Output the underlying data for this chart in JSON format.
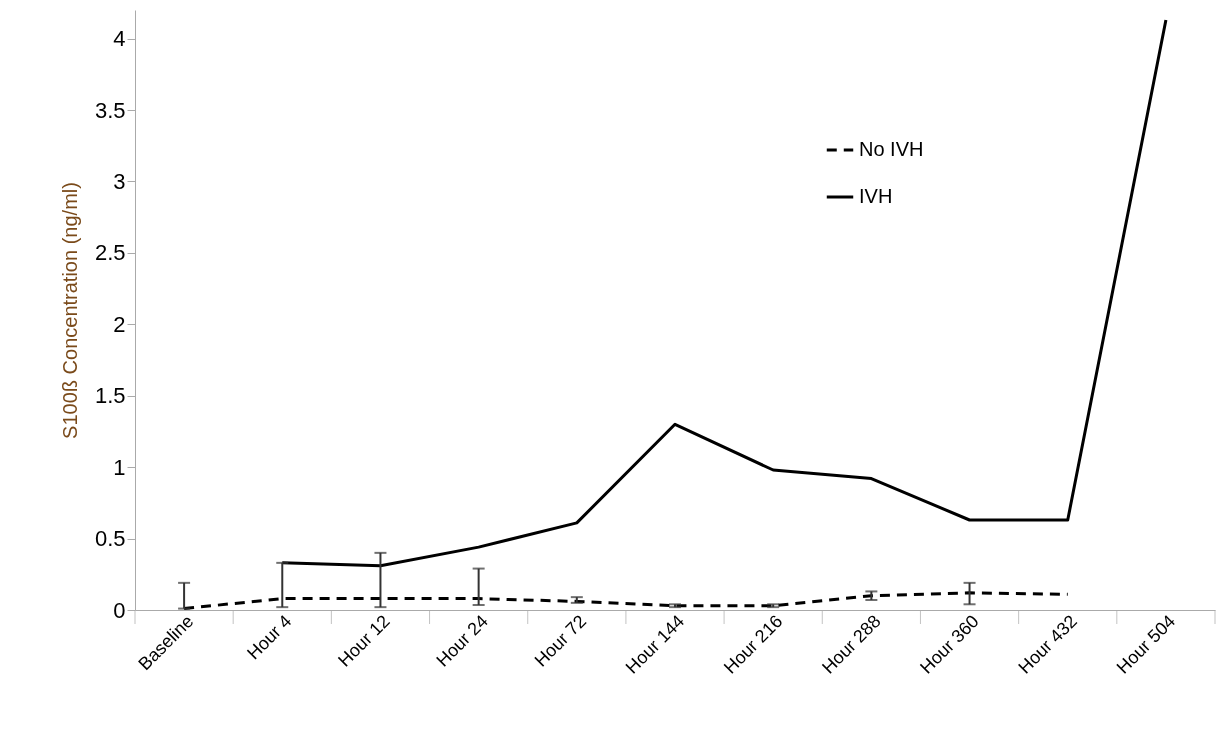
{
  "chart_data": {
    "type": "line",
    "ylabel": "S100ß Concentration (ng/ml)",
    "categories": [
      "Baseline",
      "Hour 4",
      "Hour 12",
      "Hour 24",
      "Hour 72",
      "Hour 144",
      "Hour 216",
      "Hour 288",
      "Hour 360",
      "Hour 432",
      "Hour 504"
    ],
    "series": [
      {
        "name": "No IVH",
        "color": "#000000",
        "line_style": "dashed",
        "values": [
          0.01,
          0.08,
          0.08,
          0.08,
          0.06,
          0.03,
          0.03,
          0.1,
          0.12,
          0.11,
          null
        ],
        "errors": [
          [
            0.01,
            0.19
          ],
          [
            0.02,
            0.33
          ],
          [
            0.02,
            0.4
          ],
          [
            0.035,
            0.29
          ],
          [
            0.05,
            0.09
          ],
          [
            0.02,
            0.04
          ],
          [
            0.02,
            0.04
          ],
          [
            0.07,
            0.13
          ],
          [
            0.04,
            0.19
          ],
          null,
          null
        ]
      },
      {
        "name": "IVH",
        "color": "#000000",
        "line_style": "solid",
        "values": [
          null,
          0.33,
          0.31,
          0.44,
          0.61,
          1.3,
          0.98,
          0.92,
          0.63,
          0.63,
          4.13
        ]
      }
    ],
    "ylim": [
      0,
      4.2
    ],
    "yticks": [
      0,
      0.5,
      1,
      1.5,
      2,
      2.5,
      3,
      3.5,
      4
    ],
    "grid": false,
    "legend": "top right"
  }
}
